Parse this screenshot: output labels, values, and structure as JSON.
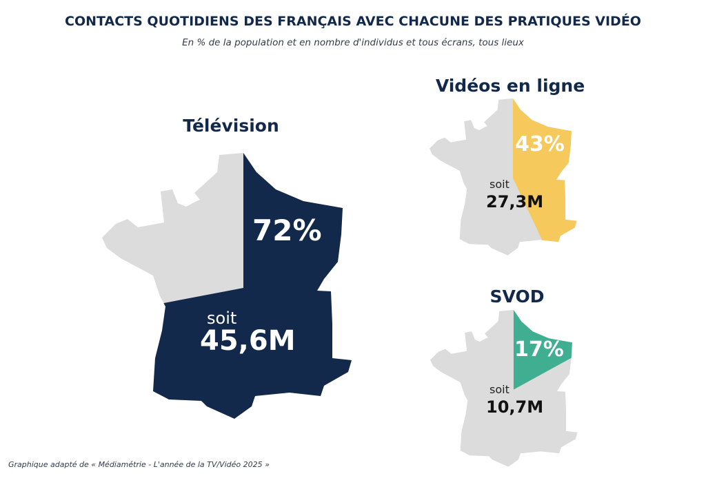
{
  "title": "CONTACTS QUOTIDIENS DES FRANÇAIS AVEC CHACUNE DES PRATIQUES VIDÉO",
  "subtitle": "En % de la population et en nombre d'individus et tous écrans, tous lieux",
  "source": "Graphique adapté de « Médiamétrie - L'année de la TV/Vidéo 2025 »",
  "chart_data": {
    "type": "pie",
    "base_color": "#dcdcdc",
    "series": [
      {
        "name": "Télévision",
        "value": 72,
        "label": "72%",
        "soit": "soit",
        "individuals": "45,6M",
        "color": "#13294b"
      },
      {
        "name": "Vidéos en ligne",
        "value": 43,
        "label": "43%",
        "soit": "soit",
        "individuals": "27,3M",
        "color": "#f5c95c"
      },
      {
        "name": "SVOD",
        "value": 17,
        "label": "17%",
        "soit": "soit",
        "individuals": "10,7M",
        "color": "#3fae91"
      }
    ]
  }
}
